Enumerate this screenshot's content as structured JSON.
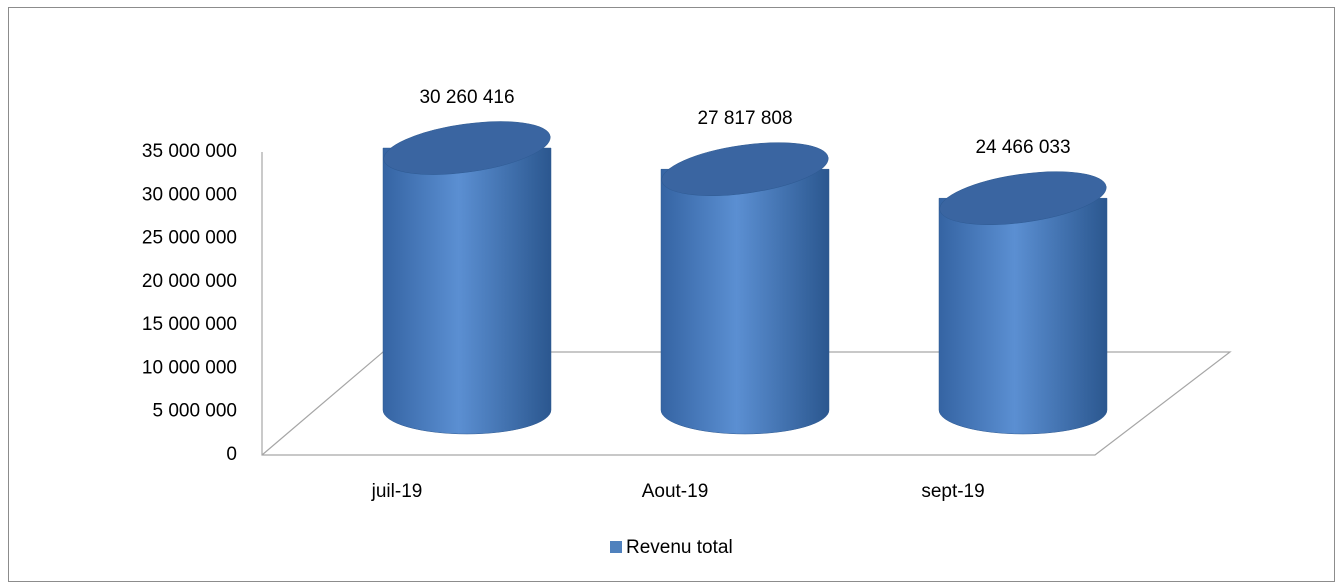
{
  "chart_data": {
    "type": "cylinder",
    "categories": [
      "juil-19",
      "Aout-19",
      "sept-19"
    ],
    "series": [
      {
        "name": "Revenu total",
        "color": "#4f81bd",
        "values": [
          30260416,
          27817808,
          24466033
        ],
        "value_labels": [
          "30 260 416",
          "27 817 808",
          "24 466 033"
        ]
      }
    ],
    "ylim": [
      0,
      35000000
    ],
    "yticks": [
      0,
      {
        "value": 5000000,
        "label": "5 000 000"
      },
      {
        "value": 10000000,
        "label": "10 000 000"
      },
      {
        "value": 15000000,
        "label": "15 000 000"
      },
      {
        "value": 20000000,
        "label": "20 000 000"
      },
      {
        "value": 25000000,
        "label": "25 000 000"
      },
      {
        "value": 30000000,
        "label": "30 000 000"
      },
      {
        "value": 35000000,
        "label": "35 000 000"
      }
    ],
    "grid": false,
    "legend": "bottom"
  }
}
